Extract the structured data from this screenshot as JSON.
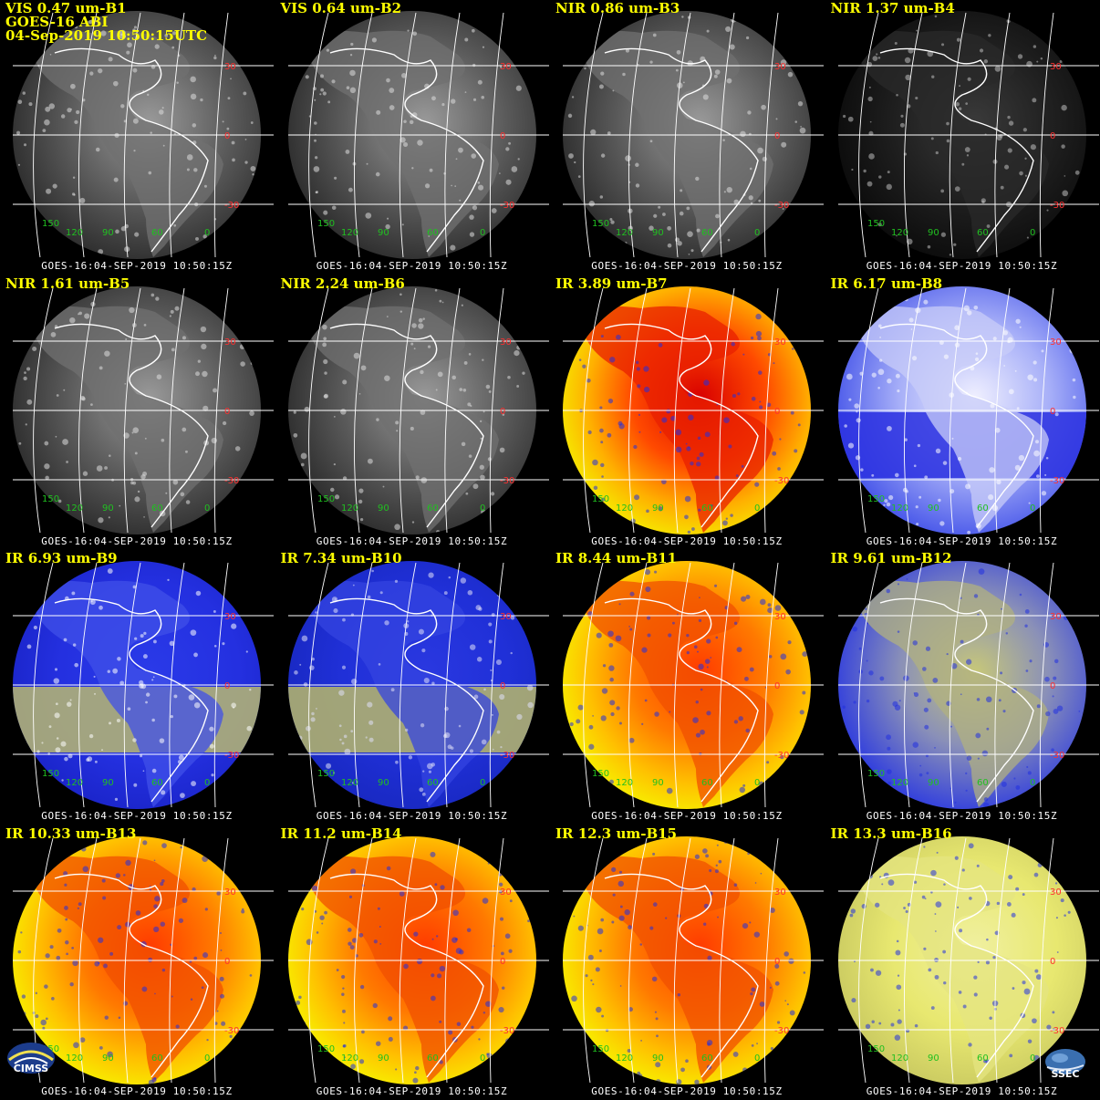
{
  "header": {
    "satellite": "GOES-16 ABI",
    "timestamp": "04-Sep-2019 10:50:15UTC"
  },
  "footer_text": "GOES-16:04-SEP-2019 10:50:15Z",
  "latitude_labels": [
    "30",
    "0",
    "-30"
  ],
  "longitude_labels": [
    "150",
    "120",
    "90",
    "60",
    "0"
  ],
  "colors": {
    "title": "#ffff00",
    "latitude_label": "#ff3030",
    "longitude_label": "#20c020",
    "grid_line": "#ffffff",
    "border": "#c0c0c0"
  },
  "panels": [
    {
      "label": "VIS 0.47 um-B1",
      "palette": "vis",
      "show_header": true
    },
    {
      "label": "VIS 0.64 um-B2",
      "palette": "vis"
    },
    {
      "label": "NIR 0.86 um-B3",
      "palette": "vis"
    },
    {
      "label": "NIR 1.37 um-B4",
      "palette": "dark"
    },
    {
      "label": "NIR 1.61 um-B5",
      "palette": "vis"
    },
    {
      "label": "NIR 2.24 um-B6",
      "palette": "vis"
    },
    {
      "label": "IR 3.89 um-B7",
      "palette": "ir_hot"
    },
    {
      "label": "IR 6.17 um-B8",
      "palette": "wv_white"
    },
    {
      "label": "IR 6.93 um-B9",
      "palette": "wv_blue"
    },
    {
      "label": "IR 7.34 um-B10",
      "palette": "wv_olive"
    },
    {
      "label": "IR 8.44 um-B11",
      "palette": "ir_warm"
    },
    {
      "label": "IR 9.61 um-B12",
      "palette": "ozone"
    },
    {
      "label": "IR 10.33 um-B13",
      "palette": "ir_warm"
    },
    {
      "label": "IR 11.2 um-B14",
      "palette": "ir_warm"
    },
    {
      "label": "IR 12.3 um-B15",
      "palette": "ir_warm"
    },
    {
      "label": "IR 13.3 um-B16",
      "palette": "co2"
    }
  ],
  "logos": {
    "left": "CIMSS",
    "right": "SSEC"
  }
}
